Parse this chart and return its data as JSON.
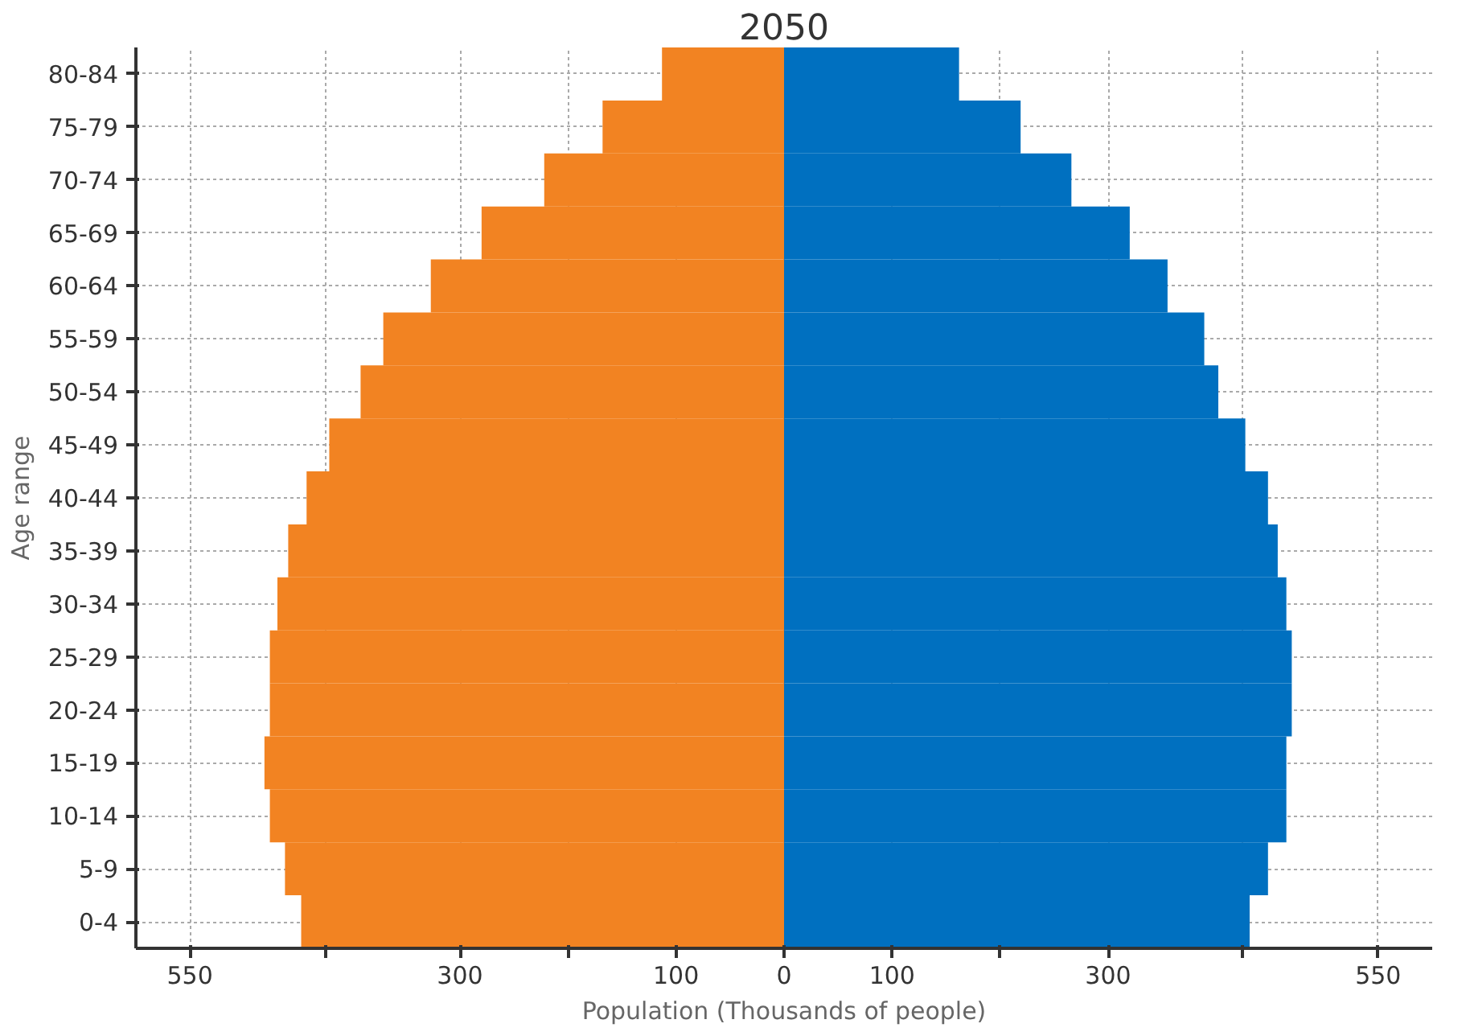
{
  "chart_data": {
    "type": "bar",
    "orientation": "horizontal",
    "stacked": true,
    "title": "2050",
    "xlabel": "Population (Thousands of people)",
    "ylabel": "Age range",
    "categories": [
      "80-84",
      "75-79",
      "70-74",
      "65-69",
      "60-64",
      "55-59",
      "50-54",
      "45-49",
      "40-44",
      "35-39",
      "30-34",
      "25-29",
      "20-24",
      "15-19",
      "10-14",
      "5-9",
      "0-4"
    ],
    "series": [
      {
        "color": "#f28322",
        "values": [
          -113,
          -168,
          -222,
          -280,
          -327,
          -371,
          -392,
          -421,
          -442,
          -459,
          -469,
          -476,
          -476,
          -481,
          -476,
          -462,
          -447
        ]
      },
      {
        "color": "#0070c0",
        "values": [
          162,
          219,
          266,
          320,
          355,
          389,
          402,
          427,
          448,
          457,
          465,
          470,
          470,
          465,
          465,
          448,
          431
        ]
      }
    ],
    "xlim": [
      -600,
      600
    ],
    "xticks": [
      {
        "value": -550,
        "label": "550"
      },
      {
        "value": -425,
        "label": null
      },
      {
        "value": -300,
        "label": "300"
      },
      {
        "value": -200,
        "label": null
      },
      {
        "value": -100,
        "label": "100"
      },
      0,
      {
        "value": 100,
        "label": "100"
      },
      {
        "value": 200,
        "label": null
      },
      {
        "value": 300,
        "label": "300"
      },
      {
        "value": 425,
        "label": null
      },
      {
        "value": 550,
        "label": "550"
      }
    ],
    "grid": true
  }
}
